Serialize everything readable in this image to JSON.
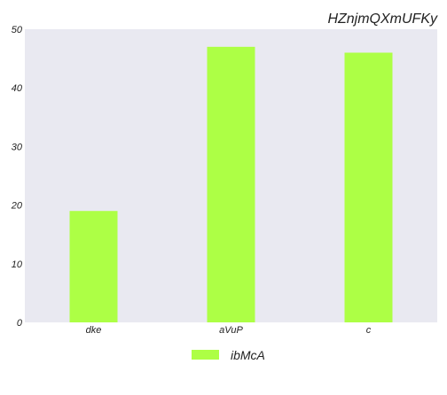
{
  "chart_data": {
    "type": "bar",
    "title": "HZnjmQXmUFKy",
    "xlabel": "",
    "ylabel": "",
    "categories": [
      "dke",
      "aVuP",
      "c"
    ],
    "series": [
      {
        "name": "ibMcA",
        "values": [
          19,
          47,
          46
        ],
        "color": "#adff45"
      }
    ],
    "ylim": [
      0,
      50
    ],
    "yticks": [
      0,
      10,
      20,
      30,
      40,
      50
    ],
    "grid": false,
    "legend_position": "bottom-center",
    "plot_background": "#e9e9f1"
  }
}
